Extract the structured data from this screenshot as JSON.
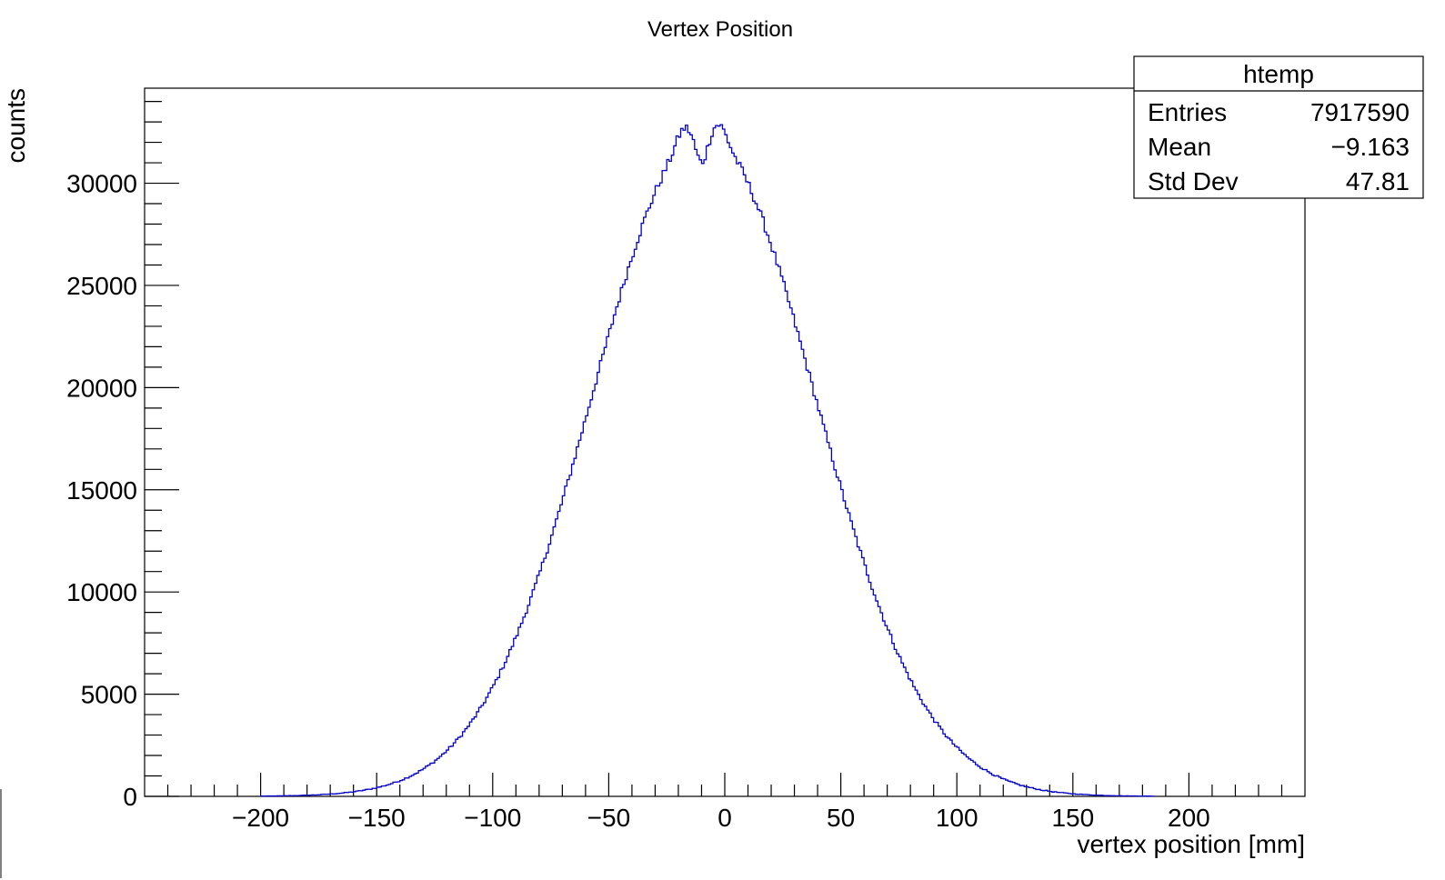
{
  "chart_data": {
    "type": "histogram",
    "title": "Vertex Position",
    "xlabel": "vertex position [mm]",
    "ylabel": "counts",
    "xlim": [
      -250,
      250
    ],
    "ylim": [
      0,
      34650
    ],
    "x_ticks": [
      -200,
      -150,
      -100,
      -50,
      0,
      50,
      100,
      150,
      200
    ],
    "x_tick_labels": [
      "−200",
      "−150",
      "−100",
      "−50",
      "0",
      "50",
      "100",
      "150",
      "200"
    ],
    "y_ticks": [
      0,
      5000,
      10000,
      15000,
      20000,
      25000,
      30000
    ],
    "y_tick_labels": [
      "0",
      "5000",
      "10000",
      "15000",
      "20000",
      "25000",
      "30000"
    ],
    "grid": false,
    "line_color": "#0000cc",
    "series": [
      {
        "name": "htemp",
        "bin_edges_range": [
          -200,
          185
        ],
        "bin_width": 1,
        "shape": {
          "gaussian_peak": 32500,
          "gaussian_mean": -9.163,
          "gaussian_sigma": 47.81,
          "dips_at": [
            -10
          ],
          "peaks_at": [
            -18,
            -2
          ]
        },
        "sample_points": [
          [
            -200,
            0
          ],
          [
            -175,
            90
          ],
          [
            -150,
            420
          ],
          [
            -125,
            1900
          ],
          [
            -100,
            5200
          ],
          [
            -75,
            11800
          ],
          [
            -50,
            20700
          ],
          [
            -25,
            30500
          ],
          [
            -18,
            32600
          ],
          [
            -10,
            31000
          ],
          [
            -2,
            33000
          ],
          [
            0,
            32600
          ],
          [
            25,
            27000
          ],
          [
            50,
            17000
          ],
          [
            75,
            7300
          ],
          [
            100,
            2400
          ],
          [
            125,
            700
          ],
          [
            150,
            120
          ],
          [
            175,
            10
          ],
          [
            185,
            0
          ]
        ]
      }
    ],
    "stats_box": {
      "title": "htemp",
      "rows": [
        {
          "label": "Entries",
          "value": "7917590"
        },
        {
          "label": "Mean",
          "value": "−9.163"
        },
        {
          "label": "Std Dev",
          "value": "47.81"
        }
      ]
    }
  }
}
